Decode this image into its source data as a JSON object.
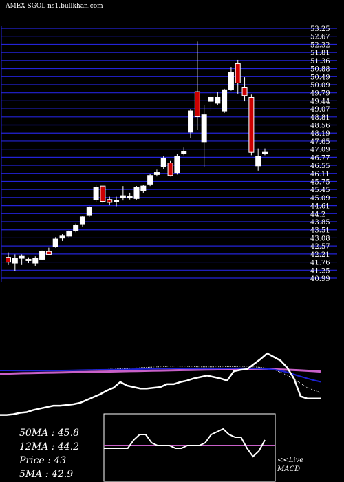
{
  "header": {
    "title": "AMEX  SGOL  ns1.bullkhan.com"
  },
  "chart_data": {
    "type": "candlestick",
    "symbol": "SGOL",
    "price_axis": {
      "labels": [
        "53.25",
        "52.67",
        "52.32",
        "51.81",
        "51.36",
        "50.88",
        "50.49",
        "50.09",
        "49.79",
        "49.44",
        "49.07",
        "48.81",
        "48.56",
        "48.19",
        "47.65",
        "47.09",
        "46.77",
        "46.55",
        "46.11",
        "45.75",
        "45.45",
        "45.09",
        "44.61",
        "44.2",
        "43.85",
        "43.51",
        "43.08",
        "42.57",
        "42.21",
        "41.76",
        "41.25",
        "40.99"
      ],
      "ylim": [
        40.3,
        53.6
      ]
    },
    "candles": [
      {
        "open": 41.6,
        "high": 41.85,
        "low": 41.2,
        "close": 41.35,
        "color": "red"
      },
      {
        "open": 41.3,
        "high": 41.75,
        "low": 40.9,
        "close": 41.55,
        "color": "white"
      },
      {
        "open": 41.55,
        "high": 41.75,
        "low": 41.2,
        "close": 41.65,
        "color": "white"
      },
      {
        "open": 41.45,
        "high": 41.6,
        "low": 41.3,
        "close": 41.5,
        "color": "red"
      },
      {
        "open": 41.3,
        "high": 41.65,
        "low": 41.15,
        "close": 41.55,
        "color": "white"
      },
      {
        "open": 41.5,
        "high": 41.95,
        "low": 41.45,
        "close": 41.9,
        "color": "white"
      },
      {
        "open": 41.9,
        "high": 42.1,
        "low": 41.7,
        "close": 41.75,
        "color": "red"
      },
      {
        "open": 42.15,
        "high": 42.65,
        "low": 42.1,
        "close": 42.55,
        "color": "white"
      },
      {
        "open": 42.6,
        "high": 42.8,
        "low": 42.45,
        "close": 42.7,
        "color": "white"
      },
      {
        "open": 42.7,
        "high": 43.0,
        "low": 42.6,
        "close": 42.95,
        "color": "white"
      },
      {
        "open": 43.0,
        "high": 43.35,
        "low": 42.9,
        "close": 43.25,
        "color": "white"
      },
      {
        "open": 43.3,
        "high": 43.75,
        "low": 43.2,
        "close": 43.7,
        "color": "white"
      },
      {
        "open": 43.8,
        "high": 44.25,
        "low": 43.7,
        "close": 44.2,
        "color": "white"
      },
      {
        "open": 44.6,
        "high": 45.35,
        "low": 44.45,
        "close": 45.25,
        "color": "white"
      },
      {
        "open": 45.3,
        "high": 45.2,
        "low": 44.4,
        "close": 44.5,
        "color": "red"
      },
      {
        "open": 44.6,
        "high": 44.75,
        "low": 44.3,
        "close": 44.45,
        "color": "red"
      },
      {
        "open": 44.5,
        "high": 44.75,
        "low": 44.25,
        "close": 44.55,
        "color": "white"
      },
      {
        "open": 44.7,
        "high": 45.3,
        "low": 44.55,
        "close": 44.8,
        "color": "white"
      },
      {
        "open": 44.75,
        "high": 44.95,
        "low": 44.6,
        "close": 44.7,
        "color": "white"
      },
      {
        "open": 44.65,
        "high": 45.3,
        "low": 44.6,
        "close": 45.25,
        "color": "white"
      },
      {
        "open": 45.05,
        "high": 45.35,
        "low": 44.95,
        "close": 45.3,
        "color": "white"
      },
      {
        "open": 45.4,
        "high": 45.95,
        "low": 45.3,
        "close": 45.85,
        "color": "white"
      },
      {
        "open": 45.9,
        "high": 46.15,
        "low": 45.8,
        "close": 46.0,
        "color": "white"
      },
      {
        "open": 46.3,
        "high": 46.85,
        "low": 46.2,
        "close": 46.75,
        "color": "white"
      },
      {
        "open": 46.5,
        "high": 46.6,
        "low": 45.8,
        "close": 45.85,
        "color": "red"
      },
      {
        "open": 46.0,
        "high": 46.95,
        "low": 45.9,
        "close": 46.85,
        "color": "white"
      },
      {
        "open": 47.0,
        "high": 47.3,
        "low": 46.9,
        "close": 47.1,
        "color": "white"
      },
      {
        "open": 48.1,
        "high": 49.3,
        "low": 47.8,
        "close": 49.2,
        "color": "white"
      },
      {
        "open": 50.2,
        "high": 52.8,
        "low": 48.2,
        "close": 48.9,
        "color": "red"
      },
      {
        "open": 47.6,
        "high": 49.5,
        "low": 46.3,
        "close": 49.0,
        "color": "white"
      },
      {
        "open": 49.7,
        "high": 50.2,
        "low": 49.2,
        "close": 49.9,
        "color": "white"
      },
      {
        "open": 49.9,
        "high": 50.2,
        "low": 49.5,
        "close": 49.6,
        "color": "white"
      },
      {
        "open": 49.2,
        "high": 50.35,
        "low": 49.1,
        "close": 50.3,
        "color": "white"
      },
      {
        "open": 50.3,
        "high": 51.45,
        "low": 50.25,
        "close": 51.2,
        "color": "white"
      },
      {
        "open": 51.65,
        "high": 51.85,
        "low": 50.1,
        "close": 50.65,
        "color": "red"
      },
      {
        "open": 50.4,
        "high": 50.95,
        "low": 49.7,
        "close": 50.0,
        "color": "red"
      },
      {
        "open": 49.9,
        "high": 50.05,
        "low": 46.9,
        "close": 47.05,
        "color": "red"
      },
      {
        "open": 46.35,
        "high": 47.25,
        "low": 46.1,
        "close": 46.85,
        "color": "white"
      },
      {
        "open": 47.0,
        "high": 47.25,
        "low": 46.9,
        "close": 47.05,
        "color": "white"
      }
    ],
    "indicators": {
      "labels": [
        {
          "name": "50MA",
          "value": "45.8"
        },
        {
          "name": "12MA",
          "value": "44.2"
        },
        {
          "name": "Price",
          "value": "43"
        },
        {
          "name": "5MA",
          "value": "42.9"
        }
      ],
      "price_line": [
        9,
        9,
        10,
        12,
        13,
        16,
        18,
        20,
        22,
        22,
        23,
        24,
        26,
        30,
        34,
        38,
        43,
        47,
        55,
        50,
        48,
        46,
        46,
        47,
        48,
        52,
        52,
        55,
        57,
        60,
        62,
        64,
        62,
        60,
        57,
        70,
        72,
        73,
        80,
        87,
        95,
        90,
        85,
        75,
        60,
        35,
        32,
        32,
        32
      ],
      "ma_blue": [
        50.5,
        50.5,
        50.4,
        50.3,
        50.2,
        50.1,
        50.2,
        50.3,
        50.5,
        50.6,
        50.8,
        51.0,
        51.2,
        51.4,
        51.5,
        51.6,
        51.8,
        52.0,
        52.3,
        52.5,
        52.8,
        53.0,
        53.2,
        53.3,
        53.2,
        53.1,
        53.0,
        53.0,
        53.1,
        53.2,
        53.3,
        53.4,
        53.4,
        53.3,
        53.0,
        52.5,
        51.5,
        49.5,
        47.0,
        43.5,
        40.5,
        37.5,
        35.0
      ],
      "ma_white_dotted": [
        50.5,
        50.5,
        50.3,
        50.2,
        50.1,
        50.0,
        50.2,
        50.4,
        50.6,
        50.8,
        51.0,
        51.2,
        51.4,
        51.7,
        52.0,
        52.4,
        52.9,
        53.4,
        54.0,
        54.5,
        55.0,
        55.5,
        56.0,
        56.5,
        56.3,
        55.8,
        55.4,
        55.3,
        55.4,
        55.5,
        55.7,
        55.8,
        56.0,
        55.5,
        54.8,
        53.5,
        51.0,
        47.0,
        42.0,
        35.5,
        28.5,
        24.0,
        20.5
      ],
      "ma_magenta": [
        46.0,
        46.2,
        46.5,
        46.8,
        47.0,
        47.2,
        47.4,
        47.6,
        47.8,
        48.0,
        48.2,
        48.4,
        48.6,
        48.8,
        49.0,
        49.2,
        49.4,
        49.6,
        49.8,
        50.0,
        50.2,
        50.4,
        50.6,
        50.8,
        51.0,
        51.2,
        51.4,
        51.6,
        51.8,
        52.0,
        52.2,
        52.3,
        52.4,
        52.4,
        52.3,
        52.2,
        52.0,
        51.7,
        51.3,
        50.8,
        50.2,
        49.6,
        49.0
      ],
      "macd_line": [
        0.6,
        0.6,
        0.6,
        0.6,
        0.6,
        0.75,
        0.85,
        0.85,
        0.7,
        0.65,
        0.65,
        0.65,
        0.6,
        0.6,
        0.65,
        0.65,
        0.65,
        0.7,
        0.85,
        0.9,
        0.95,
        0.85,
        0.8,
        0.8,
        0.6,
        0.45,
        0.55,
        0.75
      ],
      "macd_signal": 0.65
    },
    "footer_label": "<<Live\nMACD"
  },
  "colors": {
    "background": "#000000",
    "gridline": "#2323d7",
    "candle_up": "#ffffff",
    "candle_down": "#cc0000",
    "ma_blue": "#1d22d4",
    "ma_magenta": "#c860c8",
    "price_line": "#ffffff"
  }
}
